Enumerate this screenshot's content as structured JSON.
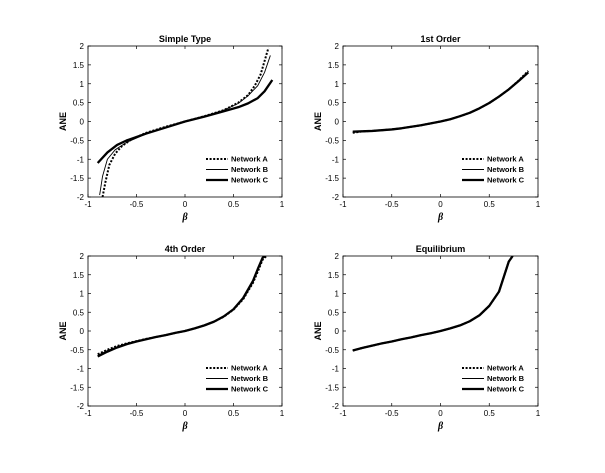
{
  "chart_data": [
    {
      "type": "line",
      "title": "Simple Type",
      "xlabel": "β",
      "ylabel": "ANE",
      "xlim": [
        -1,
        1
      ],
      "ylim": [
        -2,
        2
      ],
      "xticks": [
        "-1",
        "-0.5",
        "0",
        "0.5",
        "1"
      ],
      "yticks": [
        "-2",
        "-1.5",
        "-1",
        "-0.5",
        "0",
        "0.5",
        "1",
        "1.5",
        "2"
      ],
      "legend_position": "bottom-right",
      "series": [
        {
          "name": "Network A",
          "style": "dotted",
          "x": [
            -0.85,
            -0.82,
            -0.78,
            -0.72,
            -0.65,
            -0.55,
            -0.4,
            -0.2,
            0,
            0.2,
            0.4,
            0.55,
            0.65,
            0.72,
            0.78,
            0.82,
            0.86
          ],
          "y": [
            -2.0,
            -1.6,
            -1.15,
            -0.85,
            -0.65,
            -0.47,
            -0.3,
            -0.14,
            0,
            0.14,
            0.3,
            0.5,
            0.7,
            0.95,
            1.25,
            1.6,
            1.95
          ]
        },
        {
          "name": "Network B",
          "style": "thin",
          "x": [
            -0.88,
            -0.85,
            -0.8,
            -0.72,
            -0.6,
            -0.4,
            -0.2,
            0,
            0.2,
            0.4,
            0.55,
            0.65,
            0.75,
            0.82,
            0.88
          ],
          "y": [
            -1.95,
            -1.45,
            -1.0,
            -0.75,
            -0.55,
            -0.33,
            -0.15,
            0,
            0.14,
            0.3,
            0.48,
            0.68,
            0.95,
            1.3,
            1.75
          ]
        },
        {
          "name": "Network C",
          "style": "thick",
          "x": [
            -0.9,
            -0.8,
            -0.7,
            -0.6,
            -0.4,
            -0.2,
            0,
            0.2,
            0.4,
            0.55,
            0.65,
            0.75,
            0.82,
            0.9
          ],
          "y": [
            -1.1,
            -0.82,
            -0.62,
            -0.5,
            -0.32,
            -0.16,
            0,
            0.13,
            0.27,
            0.38,
            0.48,
            0.62,
            0.8,
            1.1
          ]
        }
      ]
    },
    {
      "type": "line",
      "title": "1st Order",
      "xlabel": "β",
      "ylabel": "ANE",
      "xlim": [
        -1,
        1
      ],
      "ylim": [
        -2,
        2
      ],
      "xticks": [
        "-1",
        "-0.5",
        "0",
        "0.5",
        "1"
      ],
      "yticks": [
        "-2",
        "-1.5",
        "-1",
        "-0.5",
        "0",
        "0.5",
        "1",
        "1.5",
        "2"
      ],
      "legend_position": "bottom-right",
      "series": [
        {
          "name": "Network A",
          "style": "dotted",
          "x": [
            -0.9,
            -0.8,
            -0.7,
            -0.6,
            -0.5,
            -0.4,
            -0.3,
            -0.2,
            -0.1,
            0,
            0.1,
            0.2,
            0.3,
            0.4,
            0.5,
            0.6,
            0.7,
            0.8,
            0.9
          ],
          "y": [
            -0.3,
            -0.26,
            -0.25,
            -0.23,
            -0.21,
            -0.18,
            -0.14,
            -0.1,
            -0.05,
            0,
            0.06,
            0.14,
            0.23,
            0.35,
            0.49,
            0.66,
            0.85,
            1.08,
            1.34
          ]
        },
        {
          "name": "Network B",
          "style": "thin",
          "x": [
            -0.9,
            -0.8,
            -0.7,
            -0.6,
            -0.5,
            -0.4,
            -0.3,
            -0.2,
            -0.1,
            0,
            0.1,
            0.2,
            0.3,
            0.4,
            0.5,
            0.6,
            0.7,
            0.8,
            0.9
          ],
          "y": [
            -0.28,
            -0.26,
            -0.25,
            -0.23,
            -0.21,
            -0.18,
            -0.14,
            -0.1,
            -0.05,
            0,
            0.06,
            0.14,
            0.23,
            0.35,
            0.49,
            0.66,
            0.85,
            1.07,
            1.32
          ]
        },
        {
          "name": "Network C",
          "style": "thick",
          "x": [
            -0.9,
            -0.8,
            -0.7,
            -0.6,
            -0.5,
            -0.4,
            -0.3,
            -0.2,
            -0.1,
            0,
            0.1,
            0.2,
            0.3,
            0.4,
            0.5,
            0.6,
            0.7,
            0.8,
            0.9
          ],
          "y": [
            -0.27,
            -0.26,
            -0.25,
            -0.23,
            -0.21,
            -0.18,
            -0.14,
            -0.1,
            -0.05,
            0,
            0.06,
            0.14,
            0.23,
            0.35,
            0.49,
            0.66,
            0.85,
            1.07,
            1.3
          ]
        }
      ]
    },
    {
      "type": "line",
      "title": "4th Order",
      "xlabel": "β",
      "ylabel": "ANE",
      "xlim": [
        -1,
        1
      ],
      "ylim": [
        -2,
        2
      ],
      "xticks": [
        "-1",
        "-0.5",
        "0",
        "0.5",
        "1"
      ],
      "yticks": [
        "-2",
        "-1.5",
        "-1",
        "-0.5",
        "0",
        "0.5",
        "1",
        "1.5",
        "2"
      ],
      "legend_position": "bottom-right",
      "series": [
        {
          "name": "Network A",
          "style": "dotted",
          "x": [
            -0.9,
            -0.8,
            -0.7,
            -0.6,
            -0.5,
            -0.4,
            -0.3,
            -0.2,
            -0.1,
            0,
            0.1,
            0.2,
            0.3,
            0.4,
            0.5,
            0.6,
            0.7,
            0.75,
            0.8,
            0.84
          ],
          "y": [
            -0.62,
            -0.5,
            -0.4,
            -0.33,
            -0.27,
            -0.21,
            -0.16,
            -0.11,
            -0.05,
            0,
            0.07,
            0.15,
            0.25,
            0.38,
            0.57,
            0.85,
            1.28,
            1.58,
            1.9,
            2.0
          ]
        },
        {
          "name": "Network B",
          "style": "thin",
          "x": [
            -0.9,
            -0.8,
            -0.7,
            -0.6,
            -0.5,
            -0.4,
            -0.3,
            -0.2,
            -0.1,
            0,
            0.1,
            0.2,
            0.3,
            0.4,
            0.5,
            0.6,
            0.7,
            0.75,
            0.8,
            0.83
          ],
          "y": [
            -0.65,
            -0.52,
            -0.42,
            -0.34,
            -0.27,
            -0.21,
            -0.16,
            -0.11,
            -0.05,
            0,
            0.07,
            0.15,
            0.25,
            0.39,
            0.58,
            0.87,
            1.3,
            1.62,
            1.93,
            2.0
          ]
        },
        {
          "name": "Network C",
          "style": "thick",
          "x": [
            -0.9,
            -0.8,
            -0.7,
            -0.6,
            -0.5,
            -0.4,
            -0.3,
            -0.2,
            -0.1,
            0,
            0.1,
            0.2,
            0.3,
            0.4,
            0.5,
            0.6,
            0.7,
            0.75,
            0.8,
            0.82
          ],
          "y": [
            -0.68,
            -0.55,
            -0.44,
            -0.35,
            -0.28,
            -0.22,
            -0.16,
            -0.11,
            -0.05,
            0,
            0.07,
            0.15,
            0.25,
            0.39,
            0.58,
            0.88,
            1.33,
            1.65,
            1.95,
            2.0
          ]
        }
      ]
    },
    {
      "type": "line",
      "title": "Equilibrium",
      "xlabel": "β",
      "ylabel": "ANE",
      "xlim": [
        -1,
        1
      ],
      "ylim": [
        -2,
        2
      ],
      "xticks": [
        "-1",
        "-0.5",
        "0",
        "0.5",
        "1"
      ],
      "yticks": [
        "-2",
        "-1.5",
        "-1",
        "-0.5",
        "0",
        "0.5",
        "1",
        "1.5",
        "2"
      ],
      "legend_position": "bottom-right",
      "series": [
        {
          "name": "Network A",
          "style": "dotted",
          "x": [
            -0.9,
            -0.8,
            -0.7,
            -0.6,
            -0.5,
            -0.4,
            -0.3,
            -0.2,
            -0.1,
            0,
            0.1,
            0.2,
            0.3,
            0.4,
            0.5,
            0.6,
            0.65,
            0.7,
            0.74
          ],
          "y": [
            -0.52,
            -0.45,
            -0.39,
            -0.33,
            -0.28,
            -0.22,
            -0.17,
            -0.11,
            -0.06,
            0,
            0.07,
            0.15,
            0.26,
            0.42,
            0.67,
            1.05,
            1.45,
            1.85,
            2.0
          ]
        },
        {
          "name": "Network B",
          "style": "thin",
          "x": [
            -0.9,
            -0.8,
            -0.7,
            -0.6,
            -0.5,
            -0.4,
            -0.3,
            -0.2,
            -0.1,
            0,
            0.1,
            0.2,
            0.3,
            0.4,
            0.5,
            0.6,
            0.65,
            0.7,
            0.74
          ],
          "y": [
            -0.52,
            -0.45,
            -0.39,
            -0.33,
            -0.28,
            -0.22,
            -0.17,
            -0.11,
            -0.06,
            0,
            0.07,
            0.15,
            0.26,
            0.42,
            0.67,
            1.05,
            1.45,
            1.85,
            2.0
          ]
        },
        {
          "name": "Network C",
          "style": "thick",
          "x": [
            -0.9,
            -0.8,
            -0.7,
            -0.6,
            -0.5,
            -0.4,
            -0.3,
            -0.2,
            -0.1,
            0,
            0.1,
            0.2,
            0.3,
            0.4,
            0.5,
            0.6,
            0.65,
            0.7,
            0.74
          ],
          "y": [
            -0.52,
            -0.45,
            -0.39,
            -0.33,
            -0.28,
            -0.22,
            -0.17,
            -0.11,
            -0.06,
            0,
            0.07,
            0.15,
            0.26,
            0.42,
            0.67,
            1.05,
            1.45,
            1.85,
            2.0
          ]
        }
      ]
    }
  ]
}
